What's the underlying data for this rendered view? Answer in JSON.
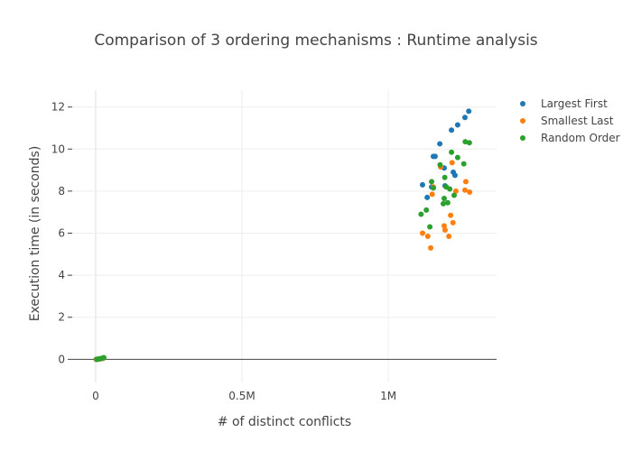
{
  "chart_data": {
    "type": "scatter",
    "title": "Comparison of 3 ordering mechanisms : Runtime analysis",
    "xlabel": "# of distinct conflicts",
    "ylabel": "Execution time (in seconds)",
    "xlim": [
      -80000,
      1370000
    ],
    "ylim": [
      -1.1,
      12.8
    ],
    "x_ticks": [
      {
        "value": 0,
        "label": "0"
      },
      {
        "value": 500000,
        "label": "0.5M"
      },
      {
        "value": 1000000,
        "label": "1M"
      }
    ],
    "y_ticks": [
      {
        "value": 0,
        "label": "0"
      },
      {
        "value": 2,
        "label": "2"
      },
      {
        "value": 4,
        "label": "4"
      },
      {
        "value": 6,
        "label": "6"
      },
      {
        "value": 8,
        "label": "8"
      },
      {
        "value": 10,
        "label": "10"
      },
      {
        "value": 12,
        "label": "12"
      }
    ],
    "grid": true,
    "legend_position": "top-right",
    "series": [
      {
        "name": "Largest First",
        "color": "#1f77b4",
        "points": [
          {
            "x": 2000,
            "y": 0.0
          },
          {
            "x": 8000,
            "y": 0.01
          },
          {
            "x": 16000,
            "y": 0.02
          },
          {
            "x": 24000,
            "y": 0.04
          },
          {
            "x": 1117000,
            "y": 8.3
          },
          {
            "x": 1133000,
            "y": 7.7
          },
          {
            "x": 1148000,
            "y": 8.2
          },
          {
            "x": 1154000,
            "y": 9.65
          },
          {
            "x": 1160000,
            "y": 9.65
          },
          {
            "x": 1176000,
            "y": 10.25
          },
          {
            "x": 1191000,
            "y": 9.1
          },
          {
            "x": 1194000,
            "y": 8.25
          },
          {
            "x": 1216000,
            "y": 10.9
          },
          {
            "x": 1228000,
            "y": 8.75
          },
          {
            "x": 1222000,
            "y": 8.9
          },
          {
            "x": 1237000,
            "y": 11.15
          },
          {
            "x": 1262000,
            "y": 11.5
          },
          {
            "x": 1275000,
            "y": 11.8
          }
        ]
      },
      {
        "name": "Smallest Last",
        "color": "#ff7f0e",
        "points": [
          {
            "x": 3000,
            "y": 0.0
          },
          {
            "x": 10000,
            "y": 0.01
          },
          {
            "x": 18000,
            "y": 0.03
          },
          {
            "x": 26000,
            "y": 0.05
          },
          {
            "x": 1117000,
            "y": 6.0
          },
          {
            "x": 1135000,
            "y": 5.85
          },
          {
            "x": 1145000,
            "y": 5.3
          },
          {
            "x": 1150000,
            "y": 7.85
          },
          {
            "x": 1154000,
            "y": 8.2
          },
          {
            "x": 1179000,
            "y": 9.15
          },
          {
            "x": 1191000,
            "y": 6.35
          },
          {
            "x": 1194000,
            "y": 6.15
          },
          {
            "x": 1207000,
            "y": 5.85
          },
          {
            "x": 1213000,
            "y": 6.85
          },
          {
            "x": 1221000,
            "y": 6.5
          },
          {
            "x": 1218000,
            "y": 9.35
          },
          {
            "x": 1231000,
            "y": 8.0
          },
          {
            "x": 1262000,
            "y": 8.05
          },
          {
            "x": 1265000,
            "y": 8.45
          },
          {
            "x": 1278000,
            "y": 7.95
          }
        ]
      },
      {
        "name": "Random Order",
        "color": "#2ca02c",
        "points": [
          {
            "x": 4000,
            "y": 0.0
          },
          {
            "x": 12000,
            "y": 0.02
          },
          {
            "x": 20000,
            "y": 0.05
          },
          {
            "x": 28000,
            "y": 0.08
          },
          {
            "x": 1112000,
            "y": 6.9
          },
          {
            "x": 1130000,
            "y": 7.1
          },
          {
            "x": 1142000,
            "y": 6.3
          },
          {
            "x": 1148000,
            "y": 8.45
          },
          {
            "x": 1154000,
            "y": 8.15
          },
          {
            "x": 1177000,
            "y": 9.25
          },
          {
            "x": 1188000,
            "y": 7.4
          },
          {
            "x": 1193000,
            "y": 8.65
          },
          {
            "x": 1198000,
            "y": 8.2
          },
          {
            "x": 1191000,
            "y": 7.65
          },
          {
            "x": 1203000,
            "y": 7.45
          },
          {
            "x": 1210000,
            "y": 8.1
          },
          {
            "x": 1216000,
            "y": 9.85
          },
          {
            "x": 1225000,
            "y": 7.8
          },
          {
            "x": 1237000,
            "y": 9.6
          },
          {
            "x": 1258000,
            "y": 9.3
          },
          {
            "x": 1263000,
            "y": 10.35
          },
          {
            "x": 1277000,
            "y": 10.3
          }
        ]
      }
    ]
  }
}
